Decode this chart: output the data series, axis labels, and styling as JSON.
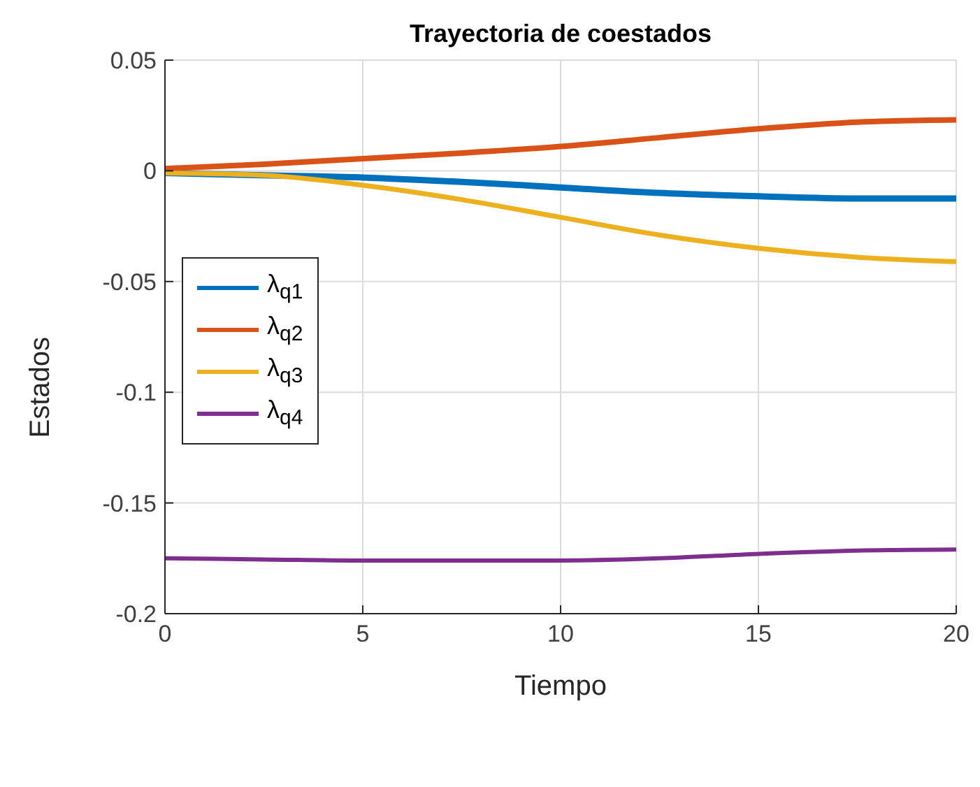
{
  "chart_data": {
    "type": "line",
    "title": "Trayectoria de coestados",
    "xlabel": "Tiempo",
    "ylabel": "Estados",
    "x": [
      0,
      2.5,
      5,
      7.5,
      10,
      12.5,
      15,
      17.5,
      20
    ],
    "series": [
      {
        "name": "λ$_{q1}$",
        "color": "#0072bd",
        "values": [
          -0.001,
          -0.002,
          -0.003,
          -0.005,
          -0.0075,
          -0.01,
          -0.0115,
          -0.0125,
          -0.0125
        ]
      },
      {
        "name": "λ$_{q2}$",
        "color": "#d95319",
        "values": [
          0.001,
          0.003,
          0.0055,
          0.008,
          0.011,
          0.015,
          0.019,
          0.022,
          0.023
        ]
      },
      {
        "name": "λ$_{q3}$",
        "color": "#edb120",
        "values": [
          -0.001,
          -0.002,
          -0.0065,
          -0.013,
          -0.021,
          -0.029,
          -0.035,
          -0.039,
          -0.041
        ]
      },
      {
        "name": "λ$_{q4}$",
        "color": "#7e2f8e",
        "values": [
          -0.175,
          -0.1755,
          -0.176,
          -0.176,
          -0.176,
          -0.175,
          -0.173,
          -0.1715,
          -0.171
        ]
      }
    ],
    "xlim": [
      0,
      20
    ],
    "xticks": [
      0,
      5,
      10,
      15,
      20
    ],
    "ylim": [
      -0.2,
      0.05
    ],
    "yticks": [
      -0.2,
      -0.15,
      -0.1,
      -0.05,
      0,
      0.05
    ],
    "grid": true,
    "legend": "left",
    "marker": "none",
    "line_style": "solid"
  }
}
